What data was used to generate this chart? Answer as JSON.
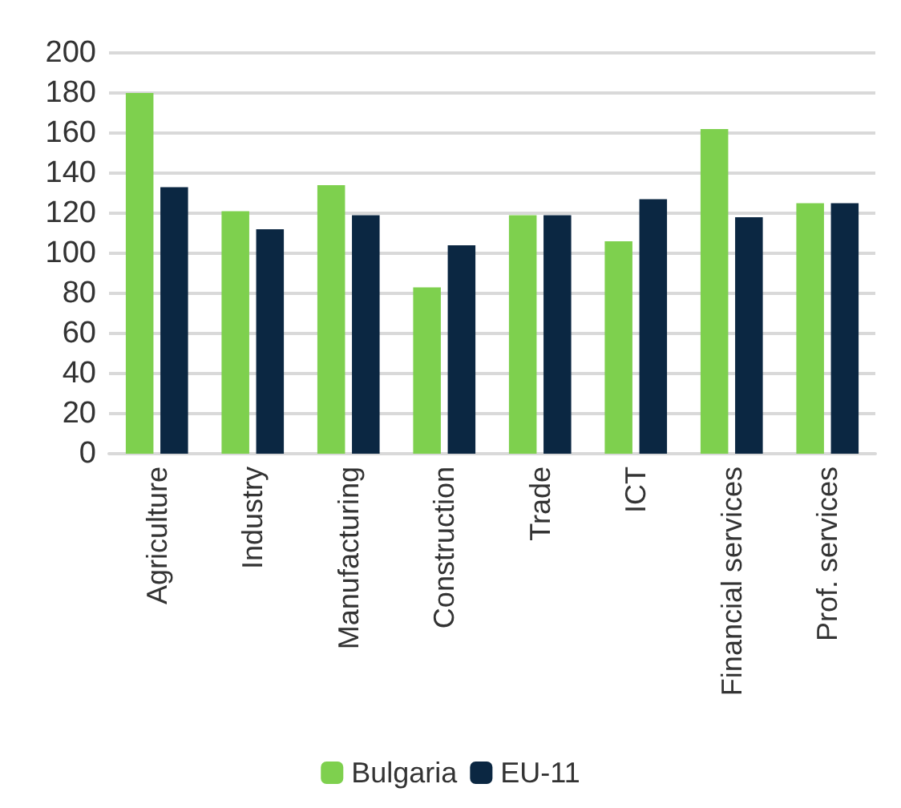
{
  "chart_data": {
    "type": "bar",
    "categories": [
      "Agriculture",
      "Industry",
      "Manufacturing",
      "Construction",
      "Trade",
      "ICT",
      "Financial services",
      "Prof. services"
    ],
    "series": [
      {
        "name": "Bulgaria",
        "color": "#7ed04e",
        "values": [
          180,
          121,
          134,
          83,
          119,
          106,
          162,
          125
        ]
      },
      {
        "name": "EU-11",
        "color": "#0b2742",
        "values": [
          133,
          112,
          119,
          104,
          119,
          127,
          118,
          125
        ]
      }
    ],
    "ylim": [
      0,
      200
    ],
    "yticks": [
      0,
      20,
      40,
      60,
      80,
      100,
      120,
      140,
      160,
      180,
      200
    ],
    "grid": "y",
    "legend": "bottom"
  }
}
